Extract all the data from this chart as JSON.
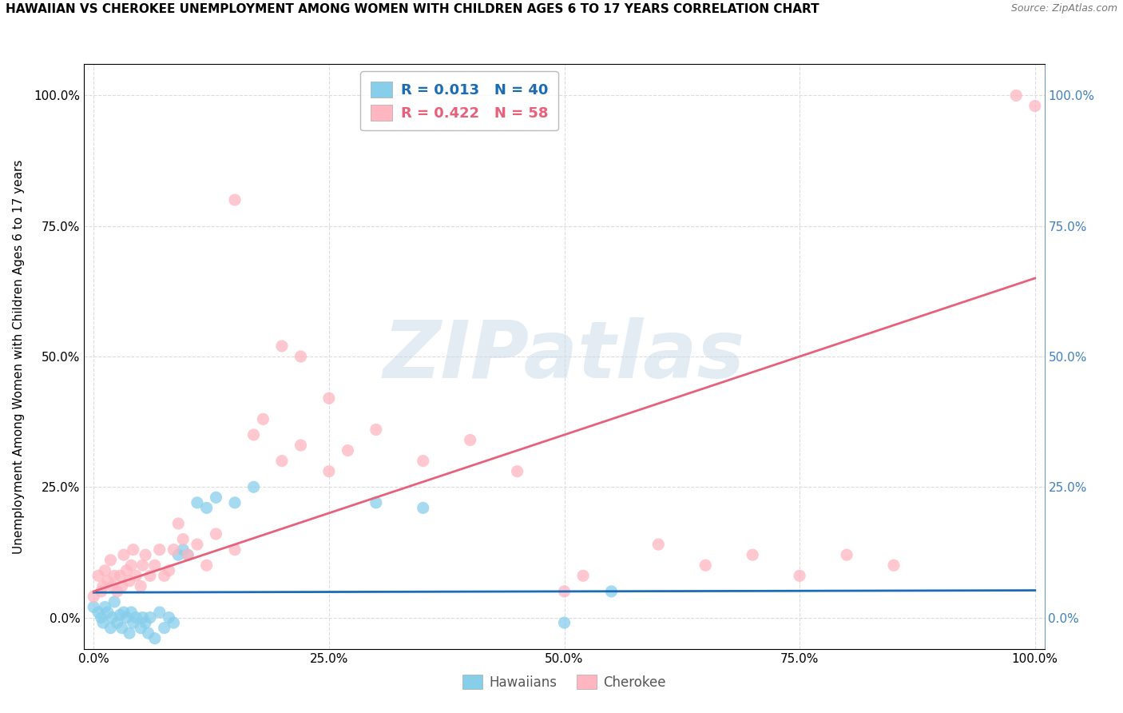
{
  "title": "HAWAIIAN VS CHEROKEE UNEMPLOYMENT AMONG WOMEN WITH CHILDREN AGES 6 TO 17 YEARS CORRELATION CHART",
  "source": "Source: ZipAtlas.com",
  "ylabel": "Unemployment Among Women with Children Ages 6 to 17 years",
  "xlim": [
    -0.01,
    1.01
  ],
  "ylim": [
    -0.06,
    1.06
  ],
  "xtick_labels": [
    "0.0%",
    "25.0%",
    "50.0%",
    "75.0%",
    "100.0%"
  ],
  "xtick_vals": [
    0,
    0.25,
    0.5,
    0.75,
    1.0
  ],
  "ytick_labels": [
    "0.0%",
    "25.0%",
    "50.0%",
    "75.0%",
    "100.0%"
  ],
  "ytick_vals": [
    0,
    0.25,
    0.5,
    0.75,
    1.0
  ],
  "hawaiian_color": "#87CEEB",
  "cherokee_color": "#FFB6C1",
  "hawaiian_R": 0.013,
  "hawaiian_N": 40,
  "cherokee_R": 0.422,
  "cherokee_N": 58,
  "hawaiian_line_color": "#1C6BB5",
  "cherokee_line_color": "#E8607A",
  "right_tick_color": "#4080C0",
  "watermark_text": "ZIPatlas",
  "background_color": "#FFFFFF",
  "grid_color": "#DCDCDC",
  "grid_style": "--",
  "hawaiian_line_y0": 0.048,
  "hawaiian_line_y1": 0.052,
  "cherokee_line_y0": 0.05,
  "cherokee_line_y1": 0.65,
  "hawaiian_scatter": [
    [
      0.0,
      0.02
    ],
    [
      0.005,
      0.01
    ],
    [
      0.008,
      0.0
    ],
    [
      0.01,
      -0.01
    ],
    [
      0.012,
      0.02
    ],
    [
      0.015,
      0.01
    ],
    [
      0.018,
      -0.02
    ],
    [
      0.02,
      0.0
    ],
    [
      0.022,
      0.03
    ],
    [
      0.025,
      -0.01
    ],
    [
      0.028,
      0.005
    ],
    [
      0.03,
      -0.02
    ],
    [
      0.032,
      0.01
    ],
    [
      0.035,
      0.0
    ],
    [
      0.038,
      -0.03
    ],
    [
      0.04,
      0.01
    ],
    [
      0.042,
      -0.01
    ],
    [
      0.045,
      0.0
    ],
    [
      0.05,
      -0.02
    ],
    [
      0.052,
      0.0
    ],
    [
      0.055,
      -0.01
    ],
    [
      0.058,
      -0.03
    ],
    [
      0.06,
      0.0
    ],
    [
      0.065,
      -0.04
    ],
    [
      0.07,
      0.01
    ],
    [
      0.075,
      -0.02
    ],
    [
      0.08,
      0.0
    ],
    [
      0.085,
      -0.01
    ],
    [
      0.09,
      0.12
    ],
    [
      0.095,
      0.13
    ],
    [
      0.1,
      0.12
    ],
    [
      0.11,
      0.22
    ],
    [
      0.12,
      0.21
    ],
    [
      0.13,
      0.23
    ],
    [
      0.15,
      0.22
    ],
    [
      0.17,
      0.25
    ],
    [
      0.3,
      0.22
    ],
    [
      0.35,
      0.21
    ],
    [
      0.5,
      -0.01
    ],
    [
      0.55,
      0.05
    ]
  ],
  "cherokee_scatter": [
    [
      0.0,
      0.04
    ],
    [
      0.005,
      0.08
    ],
    [
      0.008,
      0.05
    ],
    [
      0.01,
      0.06
    ],
    [
      0.012,
      0.09
    ],
    [
      0.015,
      0.07
    ],
    [
      0.018,
      0.11
    ],
    [
      0.02,
      0.06
    ],
    [
      0.022,
      0.08
    ],
    [
      0.025,
      0.05
    ],
    [
      0.028,
      0.08
    ],
    [
      0.03,
      0.06
    ],
    [
      0.032,
      0.12
    ],
    [
      0.035,
      0.09
    ],
    [
      0.038,
      0.07
    ],
    [
      0.04,
      0.1
    ],
    [
      0.042,
      0.13
    ],
    [
      0.045,
      0.08
    ],
    [
      0.05,
      0.06
    ],
    [
      0.052,
      0.1
    ],
    [
      0.055,
      0.12
    ],
    [
      0.06,
      0.08
    ],
    [
      0.065,
      0.1
    ],
    [
      0.07,
      0.13
    ],
    [
      0.075,
      0.08
    ],
    [
      0.08,
      0.09
    ],
    [
      0.085,
      0.13
    ],
    [
      0.09,
      0.18
    ],
    [
      0.095,
      0.15
    ],
    [
      0.1,
      0.12
    ],
    [
      0.11,
      0.14
    ],
    [
      0.12,
      0.1
    ],
    [
      0.13,
      0.16
    ],
    [
      0.15,
      0.13
    ],
    [
      0.17,
      0.35
    ],
    [
      0.18,
      0.38
    ],
    [
      0.2,
      0.3
    ],
    [
      0.22,
      0.33
    ],
    [
      0.25,
      0.28
    ],
    [
      0.27,
      0.32
    ],
    [
      0.15,
      0.8
    ],
    [
      0.2,
      0.52
    ],
    [
      0.22,
      0.5
    ],
    [
      0.25,
      0.42
    ],
    [
      0.3,
      0.36
    ],
    [
      0.35,
      0.3
    ],
    [
      0.4,
      0.34
    ],
    [
      0.45,
      0.28
    ],
    [
      0.5,
      0.05
    ],
    [
      0.52,
      0.08
    ],
    [
      0.6,
      0.14
    ],
    [
      0.65,
      0.1
    ],
    [
      0.7,
      0.12
    ],
    [
      0.75,
      0.08
    ],
    [
      0.8,
      0.12
    ],
    [
      0.85,
      0.1
    ],
    [
      0.98,
      1.0
    ],
    [
      1.0,
      0.98
    ]
  ]
}
